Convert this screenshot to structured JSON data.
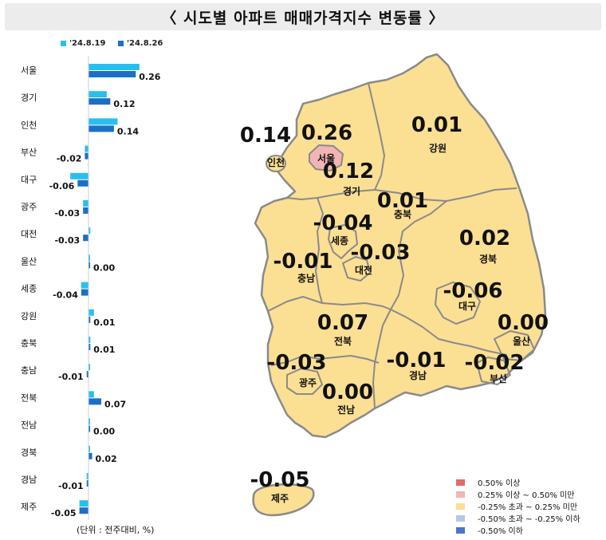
{
  "title": "〈 시도별 아파트 매매가격지수 변동률 〉",
  "unit_note": "(단위 : 전주대비, %)",
  "colors": {
    "series1": "#27c0ee",
    "series2": "#1c6fc7",
    "map_fill": "#fbdf93",
    "map_stroke": "#8a8a8a",
    "seoul_fill": "#f2b4b4"
  },
  "map_legend": [
    {
      "label": "0.50% 이상",
      "color": "#e06b6b"
    },
    {
      "label": "0.25% 이상 ~ 0.50% 미만",
      "color": "#f2b4b4"
    },
    {
      "label": "-0.25% 초과 ~ 0.25% 미만",
      "color": "#fbdf93"
    },
    {
      "label": "-0.50% 초과 ~ -0.25% 이하",
      "color": "#b4c7e7"
    },
    {
      "label": "-0.50% 이하",
      "color": "#4a76c8"
    }
  ],
  "chart_data": {
    "type": "bar",
    "orientation": "horizontal",
    "categories": [
      "서울",
      "경기",
      "인천",
      "부산",
      "대구",
      "광주",
      "대전",
      "울산",
      "세종",
      "강원",
      "충북",
      "충남",
      "전북",
      "전남",
      "경북",
      "경남",
      "제주"
    ],
    "series": [
      {
        "name": "'24.8.19",
        "values": [
          0.28,
          0.1,
          0.16,
          -0.02,
          -0.1,
          -0.03,
          0.01,
          0.0,
          -0.04,
          0.03,
          0.01,
          0.0,
          0.03,
          0.0,
          0.0,
          -0.01,
          -0.05
        ]
      },
      {
        "name": "'24.8.26",
        "values": [
          0.26,
          0.12,
          0.14,
          -0.02,
          -0.06,
          -0.03,
          -0.03,
          0.0,
          -0.04,
          0.01,
          0.01,
          -0.01,
          0.07,
          0.0,
          0.02,
          -0.01,
          -0.05
        ]
      }
    ],
    "data_labels": [
      "0.26",
      "0.12",
      "0.14",
      "-0.02",
      "-0.06",
      "-0.03",
      "-0.03",
      "0.00",
      "-0.04",
      "0.01",
      "0.01",
      "-0.01",
      "0.07",
      "0.00",
      "0.02",
      "-0.01",
      "-0.05"
    ],
    "legend_position": "top-left"
  },
  "map_values": [
    {
      "region": "서울",
      "value": "0.26"
    },
    {
      "region": "경기",
      "value": "0.12"
    },
    {
      "region": "인천",
      "value": "0.14"
    },
    {
      "region": "강원",
      "value": "0.01"
    },
    {
      "region": "충북",
      "value": "0.01"
    },
    {
      "region": "세종",
      "value": "-0.04"
    },
    {
      "region": "대전",
      "value": "-0.03"
    },
    {
      "region": "충남",
      "value": "-0.01"
    },
    {
      "region": "경북",
      "value": "0.02"
    },
    {
      "region": "대구",
      "value": "-0.06"
    },
    {
      "region": "울산",
      "value": "0.00"
    },
    {
      "region": "전북",
      "value": "0.07"
    },
    {
      "region": "광주",
      "value": "-0.03"
    },
    {
      "region": "경남",
      "value": "-0.01"
    },
    {
      "region": "부산",
      "value": "-0.02"
    },
    {
      "region": "전남",
      "value": "0.00"
    },
    {
      "region": "제주",
      "value": "-0.05"
    }
  ]
}
